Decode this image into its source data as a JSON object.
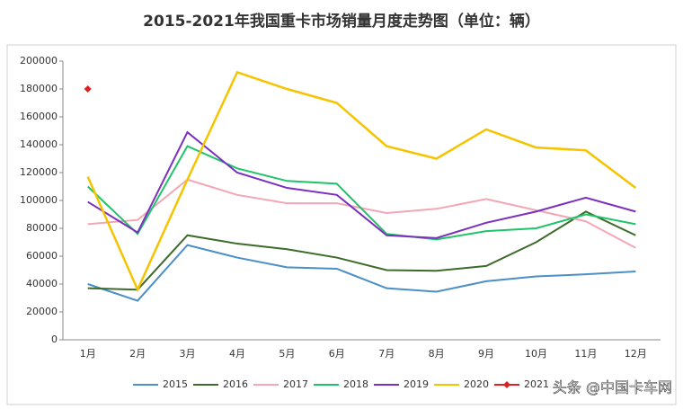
{
  "chart_data": {
    "type": "line",
    "title": "2015-2021年我国重卡市场销量月度走势图（单位：辆）",
    "categories": [
      "1月",
      "2月",
      "3月",
      "4月",
      "5月",
      "6月",
      "7月",
      "8月",
      "9月",
      "10月",
      "11月",
      "12月"
    ],
    "ylim": [
      0,
      200000
    ],
    "yticks": [
      0,
      20000,
      40000,
      60000,
      80000,
      100000,
      120000,
      140000,
      160000,
      180000,
      200000
    ],
    "grid": false,
    "legend": "bottom",
    "series": [
      {
        "name": "2015",
        "color": "#4a8fc7",
        "values": [
          40000,
          28000,
          68000,
          59000,
          52000,
          51000,
          37000,
          34500,
          42000,
          45500,
          47000,
          49000
        ]
      },
      {
        "name": "2016",
        "color": "#3d6b2a",
        "values": [
          37000,
          36000,
          75000,
          69000,
          65000,
          59000,
          50000,
          49500,
          53000,
          70000,
          92000,
          75000
        ]
      },
      {
        "name": "2017",
        "color": "#f4a6b5",
        "values": [
          83000,
          86000,
          115000,
          104000,
          98000,
          98000,
          91000,
          94000,
          101000,
          93000,
          85000,
          66000
        ]
      },
      {
        "name": "2018",
        "color": "#1fc46a",
        "values": [
          110000,
          76000,
          139000,
          123000,
          114000,
          112000,
          76000,
          72000,
          78000,
          80000,
          90000,
          83000
        ]
      },
      {
        "name": "2019",
        "color": "#7b2fbf",
        "values": [
          99000,
          77000,
          149000,
          120000,
          109000,
          104000,
          75000,
          73000,
          84000,
          92000,
          102000,
          92000
        ]
      },
      {
        "name": "2020",
        "color": "#f5c400",
        "values": [
          117000,
          36000,
          115000,
          192000,
          180000,
          170000,
          139000,
          130000,
          151000,
          138000,
          136000,
          109000
        ]
      },
      {
        "name": "2021",
        "color": "#e02020",
        "marker": "diamond",
        "values": [
          180000,
          null,
          null,
          null,
          null,
          null,
          null,
          null,
          null,
          null,
          null,
          null
        ]
      }
    ]
  },
  "watermark": "头条 @中国卡车网"
}
